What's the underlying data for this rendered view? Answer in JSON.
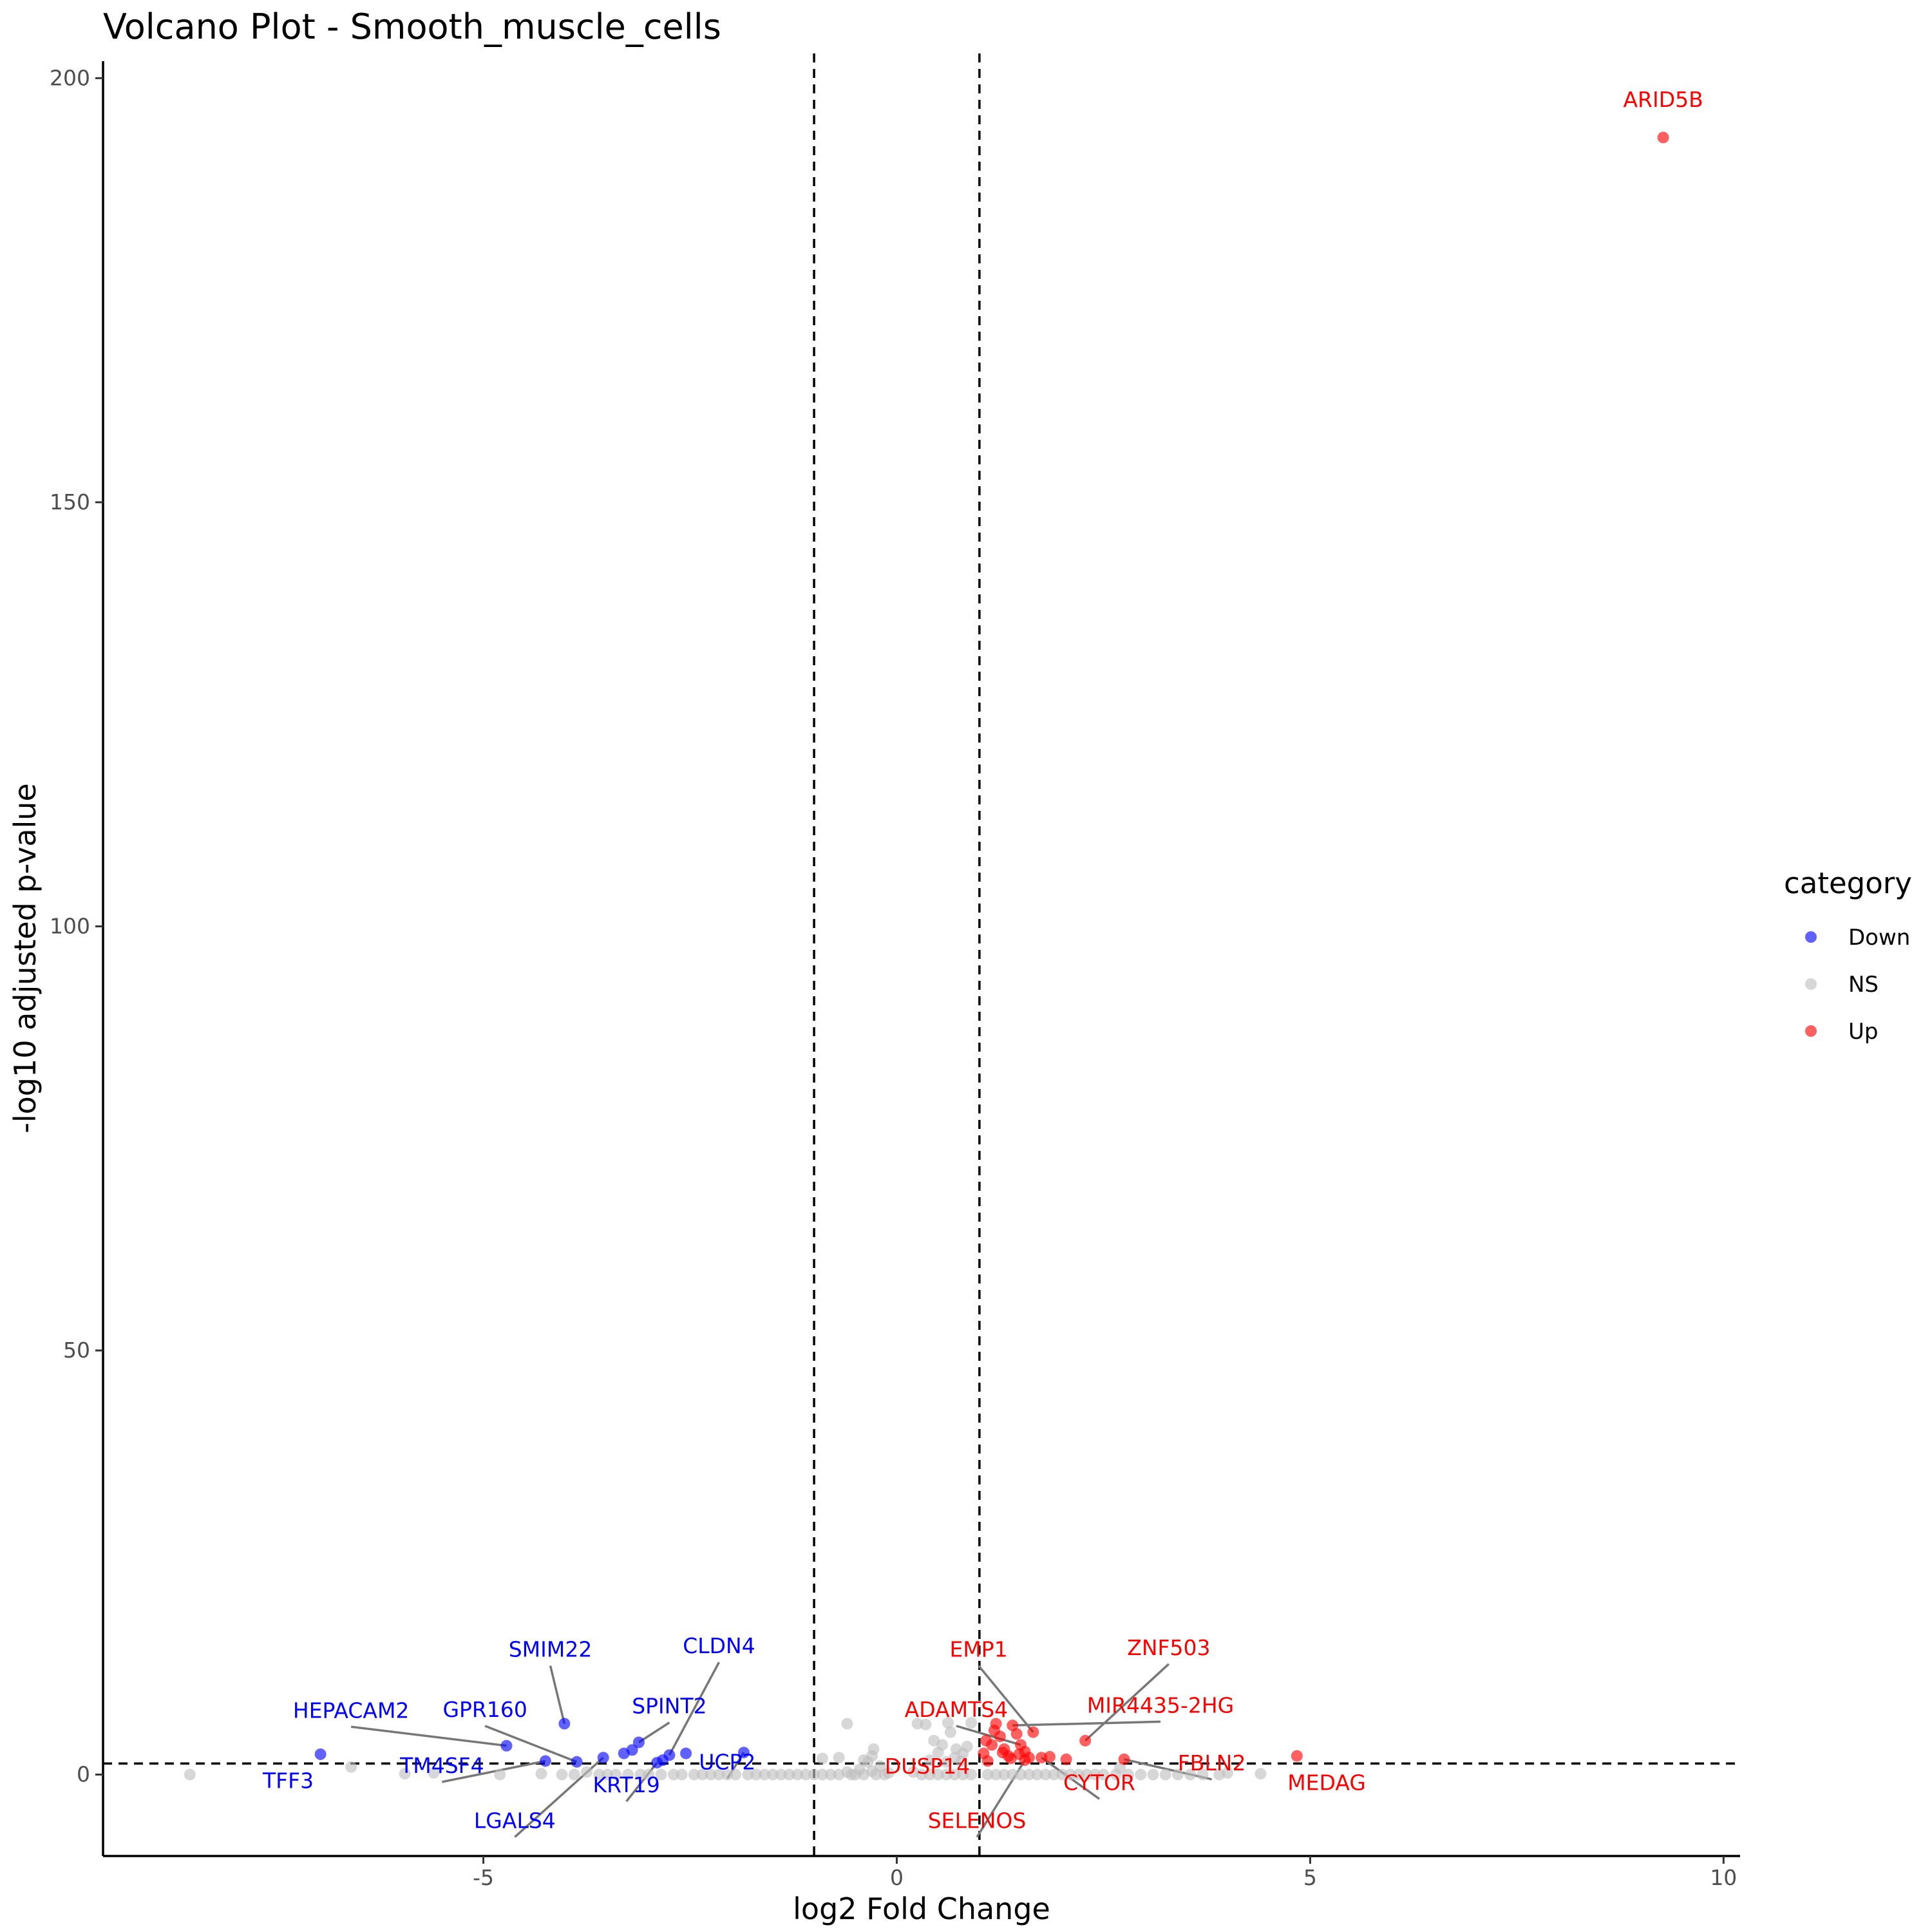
{
  "chart_data": {
    "type": "scatter",
    "title": "Volcano Plot - Smooth_muscle_cells",
    "xlabel": "log2 Fold Change",
    "ylabel": "-log10 adjusted p-value",
    "xlim": [
      -9.6,
      10.2
    ],
    "ylim": [
      -9.6,
      202
    ],
    "xticks": [
      -5,
      0,
      5,
      10
    ],
    "yticks": [
      0,
      50,
      100,
      150,
      200
    ],
    "grid": false,
    "thresholds": {
      "log2fc": [
        -1,
        1
      ],
      "neg_log10_padj": 1.3
    },
    "legend": {
      "title": "category",
      "position": "right",
      "entries": [
        {
          "name": "Down",
          "color": "#0000ff"
        },
        {
          "name": "NS",
          "color": "#bebebe"
        },
        {
          "name": "Up",
          "color": "#ff0000"
        }
      ]
    },
    "series": [
      {
        "name": "Down",
        "color": "#0000ff",
        "points": [
          {
            "x": -6.97,
            "y": 2.4,
            "label": "TFF3"
          },
          {
            "x": -4.72,
            "y": 3.4,
            "label": "HEPACAM2"
          },
          {
            "x": -4.25,
            "y": 1.6,
            "label": "TM4SF4"
          },
          {
            "x": -4.02,
            "y": 6.0,
            "label": "SMIM22"
          },
          {
            "x": -3.87,
            "y": 1.5,
            "label": "GPR160"
          },
          {
            "x": -3.55,
            "y": 2.0,
            "label": "LGALS4"
          },
          {
            "x": -3.3,
            "y": 2.5
          },
          {
            "x": -3.2,
            "y": 2.9
          },
          {
            "x": -3.12,
            "y": 3.8,
            "label": "SPINT2"
          },
          {
            "x": -2.9,
            "y": 1.4,
            "label": "KRT19"
          },
          {
            "x": -2.83,
            "y": 1.7
          },
          {
            "x": -2.75,
            "y": 2.3,
            "label": "CLDN4"
          },
          {
            "x": -2.55,
            "y": 2.5
          },
          {
            "x": -1.85,
            "y": 2.6,
            "label": "UCP2"
          }
        ]
      },
      {
        "name": "NS",
        "color": "#bebebe",
        "points": [
          {
            "x": -8.55,
            "y": 0.0
          },
          {
            "x": -6.6,
            "y": 0.9
          },
          {
            "x": -5.95,
            "y": 0.1
          },
          {
            "x": -5.6,
            "y": 0.2
          },
          {
            "x": -4.8,
            "y": 0.0
          },
          {
            "x": -4.3,
            "y": 0.1
          },
          {
            "x": -4.05,
            "y": 0.0
          },
          {
            "x": -3.9,
            "y": 0.0
          },
          {
            "x": -3.75,
            "y": 0.3
          },
          {
            "x": -3.6,
            "y": 0.0
          },
          {
            "x": -3.5,
            "y": 0.0
          },
          {
            "x": -3.4,
            "y": 0.0
          },
          {
            "x": -3.25,
            "y": 0.0
          },
          {
            "x": -3.1,
            "y": 0.0
          },
          {
            "x": -3.0,
            "y": 0.0
          },
          {
            "x": -2.85,
            "y": 0.0
          },
          {
            "x": -2.7,
            "y": 0.0
          },
          {
            "x": -2.6,
            "y": 0.0
          },
          {
            "x": -2.45,
            "y": 0.0
          },
          {
            "x": -2.35,
            "y": 0.0
          },
          {
            "x": -2.25,
            "y": 0.0
          },
          {
            "x": -2.15,
            "y": 0.0
          },
          {
            "x": -2.05,
            "y": 0.0
          },
          {
            "x": -1.95,
            "y": 0.0
          },
          {
            "x": -1.8,
            "y": 0.0
          },
          {
            "x": -1.7,
            "y": 0.0
          },
          {
            "x": -1.6,
            "y": 0.0
          },
          {
            "x": -1.5,
            "y": 0.0
          },
          {
            "x": -1.4,
            "y": 0.0
          },
          {
            "x": -1.3,
            "y": 0.0
          },
          {
            "x": -1.2,
            "y": 0.0
          },
          {
            "x": -1.1,
            "y": 0.0
          },
          {
            "x": -1.0,
            "y": 0.0
          },
          {
            "x": -0.9,
            "y": 0.0
          },
          {
            "x": -0.8,
            "y": 0.0
          },
          {
            "x": -0.7,
            "y": 0.0
          },
          {
            "x": -0.6,
            "y": 0.3
          },
          {
            "x": -0.55,
            "y": 0.0
          },
          {
            "x": -0.5,
            "y": 0.0
          },
          {
            "x": -0.45,
            "y": 0.6
          },
          {
            "x": -0.4,
            "y": 0.0
          },
          {
            "x": -0.35,
            "y": 1.5
          },
          {
            "x": -0.3,
            "y": 0.4
          },
          {
            "x": -0.28,
            "y": 3.0
          },
          {
            "x": -0.25,
            "y": 0.0
          },
          {
            "x": -0.2,
            "y": 1.0
          },
          {
            "x": -0.15,
            "y": 0.0
          },
          {
            "x": -0.1,
            "y": 0.2
          },
          {
            "x": -0.6,
            "y": 6.0
          },
          {
            "x": -0.9,
            "y": 1.9
          },
          {
            "x": -0.7,
            "y": 2.0
          },
          {
            "x": -0.4,
            "y": 1.7
          },
          {
            "x": -0.3,
            "y": 2.2
          },
          {
            "x": 0.25,
            "y": 6.0
          },
          {
            "x": 0.35,
            "y": 5.9
          },
          {
            "x": 0.45,
            "y": 4.0
          },
          {
            "x": 0.55,
            "y": 3.5
          },
          {
            "x": 0.62,
            "y": 6.1
          },
          {
            "x": 0.65,
            "y": 5.0
          },
          {
            "x": 0.72,
            "y": 3.0
          },
          {
            "x": 0.8,
            "y": 2.5
          },
          {
            "x": 0.85,
            "y": 3.3
          },
          {
            "x": 0.9,
            "y": 6.1
          },
          {
            "x": 0.4,
            "y": 1.7
          },
          {
            "x": 0.5,
            "y": 2.6
          },
          {
            "x": 0.6,
            "y": 1.5
          },
          {
            "x": 0.7,
            "y": 2.0
          },
          {
            "x": 0.78,
            "y": 1.6
          },
          {
            "x": 0.2,
            "y": 0.3
          },
          {
            "x": 0.3,
            "y": 0.0
          },
          {
            "x": 0.4,
            "y": 0.0
          },
          {
            "x": 0.5,
            "y": 0.0
          },
          {
            "x": 0.6,
            "y": 0.0
          },
          {
            "x": 0.7,
            "y": 0.0
          },
          {
            "x": 0.8,
            "y": 0.0
          },
          {
            "x": 0.9,
            "y": 0.0
          },
          {
            "x": 1.1,
            "y": 0.0
          },
          {
            "x": 1.2,
            "y": 0.0
          },
          {
            "x": 1.3,
            "y": 0.0
          },
          {
            "x": 1.4,
            "y": 0.0
          },
          {
            "x": 1.5,
            "y": 0.0
          },
          {
            "x": 1.6,
            "y": 0.0
          },
          {
            "x": 1.7,
            "y": 0.0
          },
          {
            "x": 1.8,
            "y": 0.0
          },
          {
            "x": 1.9,
            "y": 0.0
          },
          {
            "x": 2.0,
            "y": 0.0
          },
          {
            "x": 2.1,
            "y": 0.0
          },
          {
            "x": 2.2,
            "y": 0.0
          },
          {
            "x": 2.3,
            "y": 0.0
          },
          {
            "x": 2.4,
            "y": 0.0
          },
          {
            "x": 2.5,
            "y": 0.0
          },
          {
            "x": 2.65,
            "y": 0.0
          },
          {
            "x": 2.8,
            "y": 0.0
          },
          {
            "x": 2.95,
            "y": 0.0
          },
          {
            "x": 3.1,
            "y": 0.0
          },
          {
            "x": 3.25,
            "y": 0.0
          },
          {
            "x": 3.4,
            "y": 0.0
          },
          {
            "x": 3.55,
            "y": 0.0
          },
          {
            "x": 3.7,
            "y": 0.0
          },
          {
            "x": 3.9,
            "y": 0.0
          },
          {
            "x": 4.0,
            "y": 0.2
          },
          {
            "x": 4.4,
            "y": 0.1
          },
          {
            "x": 2.7,
            "y": 0.8
          }
        ]
      },
      {
        "name": "Up",
        "color": "#ff0000",
        "points": [
          {
            "x": 9.27,
            "y": 193.0,
            "label": "ARID5B"
          },
          {
            "x": 4.84,
            "y": 2.2,
            "label": "MEDAG"
          },
          {
            "x": 2.28,
            "y": 4.0,
            "label": "ZNF503"
          },
          {
            "x": 2.75,
            "y": 1.8,
            "label": "FBLN2"
          },
          {
            "x": 1.65,
            "y": 5.0,
            "label": "EMP1"
          },
          {
            "x": 1.4,
            "y": 5.8,
            "label": "MIR4435-2HG"
          },
          {
            "x": 1.5,
            "y": 3.5,
            "label": "ADAMTS4"
          },
          {
            "x": 1.75,
            "y": 2.0,
            "label": "CYTOR"
          },
          {
            "x": 1.1,
            "y": 1.6,
            "label": "DUSP14"
          },
          {
            "x": 1.55,
            "y": 1.7,
            "label": "SELENOS"
          },
          {
            "x": 2.05,
            "y": 1.8
          },
          {
            "x": 1.05,
            "y": 2.5
          },
          {
            "x": 1.15,
            "y": 3.5
          },
          {
            "x": 1.2,
            "y": 6.0
          },
          {
            "x": 1.25,
            "y": 4.5
          },
          {
            "x": 1.3,
            "y": 3.0
          },
          {
            "x": 1.35,
            "y": 2.2
          },
          {
            "x": 1.45,
            "y": 4.8
          },
          {
            "x": 1.55,
            "y": 2.7
          },
          {
            "x": 1.6,
            "y": 2.0
          },
          {
            "x": 1.18,
            "y": 5.2
          },
          {
            "x": 1.08,
            "y": 4.0
          },
          {
            "x": 1.28,
            "y": 2.6
          },
          {
            "x": 1.38,
            "y": 1.9
          },
          {
            "x": 1.48,
            "y": 2.4
          },
          {
            "x": 1.85,
            "y": 2.1
          }
        ]
      }
    ],
    "labels": [
      {
        "text": "ARID5B",
        "x": 9.27,
        "y": 196.6,
        "category": "Up"
      },
      {
        "text": "ZNF503",
        "x": 3.29,
        "y": 14.1,
        "category": "Up",
        "lineFrom": [
          2.28,
          4.0
        ]
      },
      {
        "text": "EMP1",
        "x": 0.99,
        "y": 13.9,
        "category": "Up",
        "lineFrom": [
          1.65,
          5.0
        ]
      },
      {
        "text": "MIR4435-2HG",
        "x": 3.19,
        "y": 7.3,
        "category": "Up",
        "lineFrom": [
          1.4,
          5.8
        ]
      },
      {
        "text": "ADAMTS4",
        "x": 0.72,
        "y": 6.8,
        "category": "Up",
        "lineFrom": [
          1.5,
          3.5
        ]
      },
      {
        "text": "FBLN2",
        "x": 3.81,
        "y": 0.5,
        "category": "Up",
        "lineFrom": [
          2.75,
          1.8
        ]
      },
      {
        "text": "DUSP14",
        "x": 0.37,
        "y": 0.1,
        "category": "Up"
      },
      {
        "text": "CYTOR",
        "x": 2.45,
        "y": -1.8,
        "category": "Up",
        "lineFrom": [
          1.75,
          2.0
        ]
      },
      {
        "text": "MEDAG",
        "x": 5.2,
        "y": -1.8,
        "category": "Up"
      },
      {
        "text": "SELENOS",
        "x": 0.97,
        "y": -6.3,
        "category": "Up",
        "lineFrom": [
          1.55,
          1.7
        ]
      },
      {
        "text": "SMIM22",
        "x": -4.19,
        "y": 13.9,
        "category": "Down",
        "lineFrom": [
          -4.02,
          6.0
        ]
      },
      {
        "text": "CLDN4",
        "x": -2.15,
        "y": 14.3,
        "category": "Down",
        "lineFrom": [
          -2.75,
          2.3
        ]
      },
      {
        "text": "HEPACAM2",
        "x": -6.6,
        "y": 6.7,
        "category": "Down",
        "lineFrom": [
          -4.72,
          3.4
        ]
      },
      {
        "text": "GPR160",
        "x": -4.98,
        "y": 6.8,
        "category": "Down",
        "lineFrom": [
          -3.87,
          1.5
        ]
      },
      {
        "text": "SPINT2",
        "x": -2.75,
        "y": 7.2,
        "category": "Down",
        "lineFrom": [
          -3.12,
          3.8
        ]
      },
      {
        "text": "TM4SF4",
        "x": -5.5,
        "y": 0.2,
        "category": "Down",
        "lineFrom": [
          -4.25,
          1.6
        ]
      },
      {
        "text": "UCP2",
        "x": -2.05,
        "y": 0.6,
        "category": "Down",
        "lineFrom": [
          -1.85,
          2.6
        ]
      },
      {
        "text": "TFF3",
        "x": -7.36,
        "y": -1.6,
        "category": "Down"
      },
      {
        "text": "KRT19",
        "x": -3.27,
        "y": -2.1,
        "category": "Down",
        "lineFrom": [
          -2.9,
          1.4
        ]
      },
      {
        "text": "LGALS4",
        "x": -4.62,
        "y": -6.3,
        "category": "Down",
        "lineFrom": [
          -3.55,
          2.0
        ]
      }
    ]
  }
}
